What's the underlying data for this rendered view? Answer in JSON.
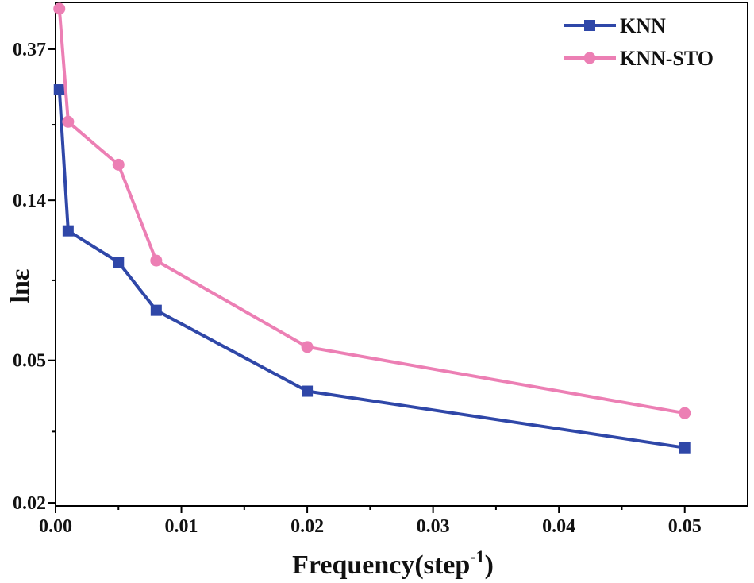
{
  "chart_data": {
    "type": "line",
    "title": "",
    "xlabel": "Frequency(step",
    "xlabel_sup": "-1",
    "xlabel_close": ")",
    "ylabel": "lnε",
    "xlim": [
      0,
      0.055
    ],
    "x_ticks": [
      0.0,
      0.01,
      0.02,
      0.03,
      0.04,
      0.05
    ],
    "x_tick_labels": [
      "0.00",
      "0.01",
      "0.02",
      "0.03",
      "0.04",
      "0.05"
    ],
    "y_ticks": [
      0.02,
      0.05,
      0.14,
      0.37
    ],
    "y_tick_labels": [
      "0.02",
      "0.05",
      "0.14",
      "0.37"
    ],
    "y_scale": "log",
    "ylim": [
      0.0196,
      0.5
    ],
    "grid": false,
    "legend_position": "top-right",
    "series": [
      {
        "name": "KNN",
        "color": "#2f47a8",
        "marker": "square",
        "x": [
          0.0003,
          0.001,
          0.005,
          0.008,
          0.02,
          0.05
        ],
        "y": [
          0.285,
          0.115,
          0.094,
          0.069,
          0.041,
          0.0285
        ]
      },
      {
        "name": "KNN-STO",
        "color": "#ec7fb4",
        "marker": "circle",
        "x": [
          0.0003,
          0.001,
          0.005,
          0.008,
          0.02,
          0.05
        ],
        "y": [
          0.48,
          0.232,
          0.176,
          0.095,
          0.0545,
          0.0356
        ]
      }
    ]
  }
}
